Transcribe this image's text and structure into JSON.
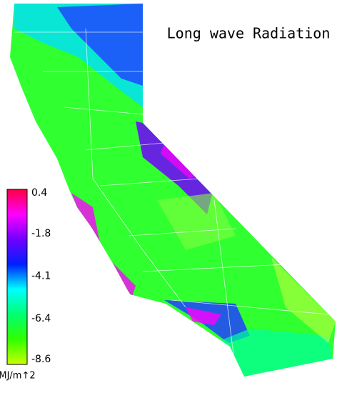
{
  "title": "Long wave Radiation",
  "colorbar": {
    "range": [
      -8.6,
      0.4
    ],
    "ticks": [
      0.4,
      -1.8,
      -4.1,
      -6.4,
      -8.6
    ],
    "unit": "MJ/m↑2",
    "colors": [
      "#ff0040",
      "#ff00ff",
      "#7000ff",
      "#0020ff",
      "#00ffff",
      "#00ff70",
      "#30ff00",
      "#c8ff00"
    ]
  }
}
